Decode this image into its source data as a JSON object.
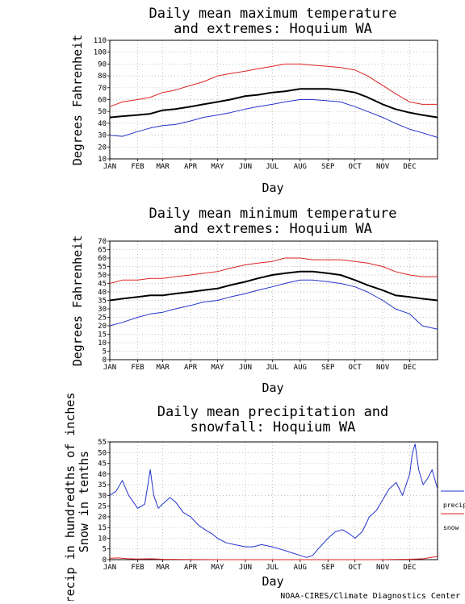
{
  "credit": "NOAA-CIRES/Climate Diagnostics Center",
  "legend": {
    "precip": {
      "label": "precip",
      "color": "#2233cc"
    },
    "snow": {
      "label": "snow",
      "color": "#dd2222"
    }
  },
  "chart_data": [
    {
      "type": "line",
      "title_line1": "Daily mean maximum temperature",
      "title_line2": "and extremes: Hoquium WA",
      "xlabel": "Day",
      "ylabel": "Degrees Fahrenheit",
      "xlim": [
        1,
        366
      ],
      "ylim": [
        10,
        110
      ],
      "ytick_step": 10,
      "grid": true,
      "x_tick_labels": [
        "JAN",
        "FEB",
        "MAR",
        "APR",
        "MAY",
        "JUN",
        "JUL",
        "AUG",
        "SEP",
        "OCT",
        "NOV",
        "DEC"
      ],
      "series": [
        {
          "role": "mean",
          "color": "#000000",
          "x": [
            1,
            15,
            32,
            46,
            60,
            74,
            91,
            105,
            121,
            135,
            152,
            166,
            182,
            196,
            213,
            227,
            244,
            258,
            274,
            288,
            305,
            319,
            335,
            349,
            366
          ],
          "values": [
            45,
            46,
            47,
            48,
            51,
            52,
            54,
            56,
            58,
            60,
            63,
            64,
            66,
            67,
            69,
            69,
            69,
            68,
            66,
            62,
            56,
            52,
            49,
            47,
            45
          ]
        },
        {
          "role": "high_extreme",
          "color": "#dd2222",
          "x": [
            1,
            15,
            32,
            46,
            60,
            74,
            91,
            105,
            121,
            135,
            152,
            166,
            182,
            196,
            213,
            227,
            244,
            258,
            274,
            288,
            305,
            319,
            335,
            349,
            366
          ],
          "values": [
            54,
            58,
            60,
            62,
            66,
            68,
            72,
            75,
            80,
            82,
            84,
            86,
            88,
            90,
            90,
            89,
            88,
            87,
            85,
            80,
            72,
            65,
            58,
            56,
            56
          ]
        },
        {
          "role": "low_extreme",
          "color": "#2233cc",
          "x": [
            1,
            15,
            32,
            46,
            60,
            74,
            91,
            105,
            121,
            135,
            152,
            166,
            182,
            196,
            213,
            227,
            244,
            258,
            274,
            288,
            305,
            319,
            335,
            349,
            366
          ],
          "values": [
            30,
            29,
            33,
            36,
            38,
            39,
            42,
            45,
            47,
            49,
            52,
            54,
            56,
            58,
            60,
            60,
            59,
            58,
            54,
            50,
            45,
            40,
            35,
            32,
            28
          ]
        }
      ]
    },
    {
      "type": "line",
      "title_line1": "Daily mean minimum temperature",
      "title_line2": "and extremes: Hoquium WA",
      "xlabel": "Day",
      "ylabel": "Degrees Fahrenheit",
      "xlim": [
        1,
        366
      ],
      "ylim": [
        0,
        70
      ],
      "ytick_step": 5,
      "grid": true,
      "x_tick_labels": [
        "JAN",
        "FEB",
        "MAR",
        "APR",
        "MAY",
        "JUN",
        "JUL",
        "AUG",
        "SEP",
        "OCT",
        "NOV",
        "DEC"
      ],
      "series": [
        {
          "role": "mean",
          "color": "#000000",
          "x": [
            1,
            15,
            32,
            46,
            60,
            74,
            91,
            105,
            121,
            135,
            152,
            166,
            182,
            196,
            213,
            227,
            244,
            258,
            274,
            288,
            305,
            319,
            335,
            349,
            366
          ],
          "values": [
            35,
            36,
            37,
            38,
            38,
            39,
            40,
            41,
            42,
            44,
            46,
            48,
            50,
            51,
            52,
            52,
            51,
            50,
            47,
            44,
            41,
            38,
            37,
            36,
            35
          ]
        },
        {
          "role": "high_extreme",
          "color": "#dd2222",
          "x": [
            1,
            15,
            32,
            46,
            60,
            74,
            91,
            105,
            121,
            135,
            152,
            166,
            182,
            196,
            213,
            227,
            244,
            258,
            274,
            288,
            305,
            319,
            335,
            349,
            366
          ],
          "values": [
            45,
            47,
            47,
            48,
            48,
            49,
            50,
            51,
            52,
            54,
            56,
            57,
            58,
            60,
            60,
            59,
            59,
            59,
            58,
            57,
            55,
            52,
            50,
            49,
            49
          ]
        },
        {
          "role": "low_extreme",
          "color": "#2233cc",
          "x": [
            1,
            15,
            32,
            46,
            60,
            74,
            91,
            105,
            121,
            135,
            152,
            166,
            182,
            196,
            213,
            227,
            244,
            258,
            274,
            288,
            305,
            319,
            335,
            349,
            366
          ],
          "values": [
            20,
            22,
            25,
            27,
            28,
            30,
            32,
            34,
            35,
            37,
            39,
            41,
            43,
            45,
            47,
            47,
            46,
            45,
            43,
            40,
            35,
            30,
            27,
            20,
            18
          ]
        }
      ]
    },
    {
      "type": "line",
      "title_line1": "Daily mean precipitation and",
      "title_line2": "snowfall: Hoquium WA",
      "xlabel": "Day",
      "ylabel_line1": "Precip in hundredths of inches",
      "ylabel_line2": "Snow in tenths",
      "xlim": [
        1,
        366
      ],
      "ylim": [
        0,
        55
      ],
      "ytick_step": 5,
      "grid": true,
      "x_tick_labels": [
        "JAN",
        "FEB",
        "MAR",
        "APR",
        "MAY",
        "JUN",
        "JUL",
        "AUG",
        "SEP",
        "OCT",
        "NOV",
        "DEC"
      ],
      "series": [
        {
          "role": "precip",
          "color": "#2233cc",
          "x": [
            1,
            8,
            15,
            22,
            32,
            40,
            46,
            50,
            55,
            60,
            68,
            74,
            83,
            91,
            100,
            107,
            115,
            121,
            130,
            140,
            152,
            160,
            170,
            182,
            190,
            198,
            205,
            213,
            220,
            227,
            233,
            244,
            252,
            260,
            268,
            274,
            282,
            290,
            298,
            305,
            312,
            320,
            327,
            335,
            338,
            341,
            345,
            350,
            355,
            360,
            366
          ],
          "values": [
            30,
            32,
            37,
            30,
            24,
            26,
            42,
            30,
            24,
            26,
            29,
            27,
            22,
            20,
            16,
            14,
            12,
            10,
            8,
            7,
            6,
            6,
            7,
            6,
            5,
            4,
            3,
            2,
            1,
            2,
            5,
            10,
            13,
            14,
            12,
            10,
            13,
            20,
            23,
            28,
            33,
            36,
            30,
            40,
            50,
            54,
            42,
            35,
            38,
            42,
            33
          ]
        },
        {
          "role": "snow",
          "color": "#dd2222",
          "x": [
            1,
            10,
            20,
            32,
            46,
            60,
            80,
            120,
            200,
            300,
            335,
            350,
            366
          ],
          "values": [
            0.6,
            0.8,
            0.5,
            0.3,
            0.4,
            0.2,
            0.1,
            0,
            0,
            0,
            0.2,
            0.4,
            1.5
          ]
        }
      ]
    }
  ]
}
